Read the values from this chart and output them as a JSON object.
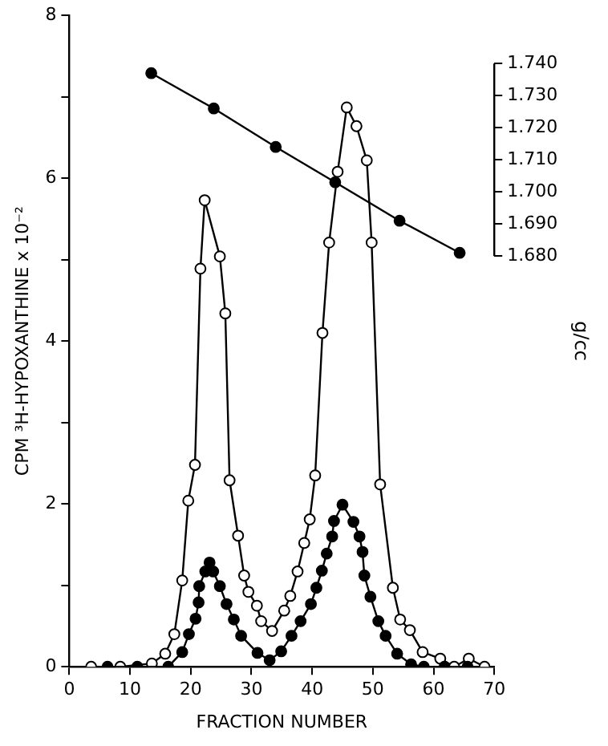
{
  "chart_data": {
    "type": "line",
    "xlabel": "FRACTION NUMBER",
    "ylabel": "CPM ³H-HYPOXANTHINE x 10⁻²",
    "y2label": "g/cc",
    "xlim": [
      0,
      70
    ],
    "xticks": [
      0,
      10,
      20,
      30,
      40,
      50,
      60,
      70
    ],
    "ylim": [
      0,
      8
    ],
    "yticks": [
      0,
      {
        "value": 1,
        "label": null
      },
      2,
      {
        "value": 3,
        "label": null
      },
      4,
      {
        "value": 5,
        "label": null
      },
      6,
      {
        "value": 7,
        "label": null
      },
      8
    ],
    "y2lim": [
      1.552,
      1.755
    ],
    "y2ticks": [
      {
        "value": 1.68,
        "label": "1.680"
      },
      {
        "value": 1.69,
        "label": "1.690"
      },
      {
        "value": 1.7,
        "label": "1.700"
      },
      {
        "value": 1.71,
        "label": "1.710"
      },
      {
        "value": 1.72,
        "label": "1.720"
      },
      {
        "value": 1.73,
        "label": "1.730"
      },
      {
        "value": 1.74,
        "label": "1.740"
      }
    ],
    "grid": false,
    "legend": false,
    "marker": "circle",
    "line_style": "solid",
    "series": [
      {
        "color": "#ffffff",
        "x": [
          3.6,
          8.4,
          13.6,
          15.8,
          17.3,
          18.6,
          19.6,
          20.7,
          21.6,
          22.3,
          24.8,
          25.7,
          26.4,
          27.8,
          28.8,
          29.5,
          30.9,
          31.6,
          33.4,
          35.4,
          36.4,
          37.6,
          38.7,
          39.6,
          40.5,
          41.7,
          42.8,
          44.2,
          45.7,
          47.3,
          49.0,
          49.8,
          51.2,
          53.3,
          54.5,
          56.1,
          58.2,
          61.1,
          63.4,
          65.8,
          68.4
        ],
        "values": [
          0,
          0,
          0.04,
          0.16,
          0.4,
          1.06,
          2.04,
          2.48,
          4.89,
          5.73,
          5.04,
          4.34,
          2.29,
          1.61,
          1.12,
          0.92,
          0.75,
          0.56,
          0.44,
          0.69,
          0.87,
          1.17,
          1.52,
          1.81,
          2.35,
          4.1,
          5.21,
          6.08,
          6.87,
          6.64,
          6.22,
          5.21,
          2.24,
          0.97,
          0.58,
          0.45,
          0.18,
          0.1,
          0,
          0.1,
          0
        ]
      },
      {
        "color": "#000000",
        "x": [
          6.3,
          11.2,
          16.3,
          18.6,
          19.7,
          20.8,
          21.3,
          21.4,
          22.4,
          23.1,
          23.7,
          24.8,
          25.9,
          27.1,
          28.3,
          31.0,
          33.0,
          34.9,
          36.6,
          38.1,
          39.8,
          40.7,
          41.6,
          42.4,
          43.3,
          43.6,
          45.0,
          46.8,
          47.8,
          48.3,
          48.6,
          49.6,
          50.9,
          52.1,
          54.0,
          56.3,
          58.4,
          61.8,
          65.6
        ],
        "values": [
          0,
          0,
          0,
          0.18,
          0.4,
          0.59,
          0.79,
          0.99,
          1.17,
          1.28,
          1.17,
          0.99,
          0.77,
          0.58,
          0.38,
          0.17,
          0.08,
          0.19,
          0.38,
          0.56,
          0.77,
          0.97,
          1.18,
          1.39,
          1.6,
          1.79,
          1.99,
          1.78,
          1.6,
          1.41,
          1.12,
          0.86,
          0.56,
          0.38,
          0.16,
          0.03,
          0,
          0,
          0
        ]
      },
      {
        "color": "#000000",
        "axis": "y2",
        "x": [
          13.5,
          23.8,
          34.0,
          43.8,
          54.4,
          64.3
        ],
        "values": [
          1.737,
          1.726,
          1.714,
          1.703,
          1.691,
          1.681
        ]
      }
    ]
  }
}
